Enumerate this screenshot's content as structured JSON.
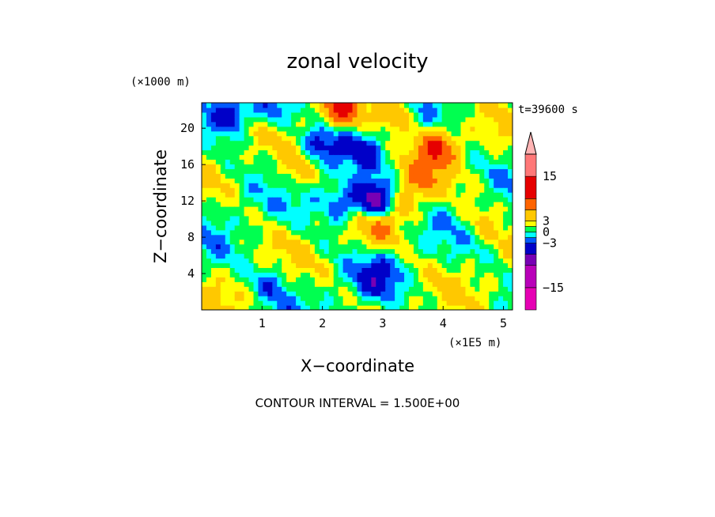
{
  "chart_data": {
    "type": "heatmap",
    "title": "zonal velocity",
    "xlabel": "X−coordinate",
    "ylabel": "Z−coordinate",
    "x_unit": "(×1E5 m)",
    "y_unit": "(×1000 m)",
    "time_label": "t=39600 s",
    "footer": "CONTOUR INTERVAL = 1.500E+00",
    "xlim": [
      0,
      5.15
    ],
    "ylim": [
      0,
      22.8
    ],
    "x_ticks": [
      1,
      2,
      3,
      4,
      5
    ],
    "y_ticks": [
      4,
      8,
      12,
      16,
      20
    ],
    "colorbar": {
      "levels": [
        {
          "lo": -21,
          "hi": -15,
          "color": "#e600b4"
        },
        {
          "lo": -15,
          "hi": -9,
          "color": "#b900b9"
        },
        {
          "lo": -9,
          "hi": -6,
          "color": "#7800b4"
        },
        {
          "lo": -6,
          "hi": -3,
          "color": "#0000c8"
        },
        {
          "lo": -3,
          "hi": -1.5,
          "color": "#005aff"
        },
        {
          "lo": -1.5,
          "hi": 0,
          "color": "#00ffff"
        },
        {
          "lo": 0,
          "hi": 1.5,
          "color": "#00ff50"
        },
        {
          "lo": 1.5,
          "hi": 3,
          "color": "#ffff00"
        },
        {
          "lo": 3,
          "hi": 6,
          "color": "#ffc800"
        },
        {
          "lo": 6,
          "hi": 9,
          "color": "#ff6400"
        },
        {
          "lo": 9,
          "hi": 15,
          "color": "#e60000"
        },
        {
          "lo": 15,
          "hi": 21,
          "color": "#ff7878"
        },
        {
          "lo": 21,
          "hi": 27,
          "color": "#ffb4b4"
        }
      ],
      "tick_labels": [
        {
          "value": 15,
          "text": "15"
        },
        {
          "value": 3,
          "text": "3"
        },
        {
          "value": 0,
          "text": "0"
        },
        {
          "value": -3,
          "text": "−3"
        },
        {
          "value": -15,
          "text": "−15"
        }
      ]
    },
    "features": [
      {
        "x": 0.5,
        "z": 21.5,
        "u": -6
      },
      {
        "x": 1.2,
        "z": 22.0,
        "u": -4
      },
      {
        "x": 2.3,
        "z": 22.0,
        "u": 8
      },
      {
        "x": 3.2,
        "z": 21.8,
        "u": 5
      },
      {
        "x": 2.0,
        "z": 18.5,
        "u": -4
      },
      {
        "x": 2.7,
        "z": 17.5,
        "u": -3
      },
      {
        "x": 1.5,
        "z": 15.0,
        "u": 3
      },
      {
        "x": 3.9,
        "z": 18.0,
        "u": 8
      },
      {
        "x": 3.6,
        "z": 14.5,
        "u": 4
      },
      {
        "x": 2.3,
        "z": 12.0,
        "u": -5
      },
      {
        "x": 2.85,
        "z": 12.0,
        "u": -10
      },
      {
        "x": 2.9,
        "z": 9.0,
        "u": 5
      },
      {
        "x": 2.9,
        "z": 3.5,
        "u": -4
      },
      {
        "x": 1.15,
        "z": 3.0,
        "u": -3
      },
      {
        "x": 3.4,
        "z": 11.5,
        "u": 3
      },
      {
        "x": 4.6,
        "z": 10.0,
        "u": 2
      }
    ]
  }
}
